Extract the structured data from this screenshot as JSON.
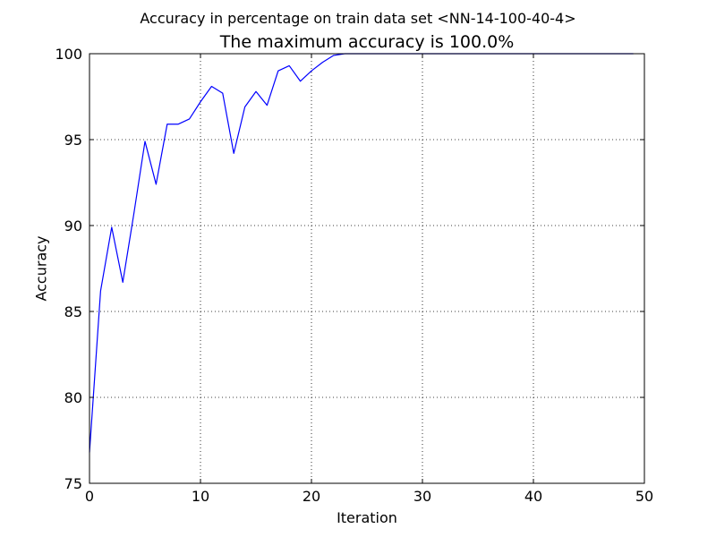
{
  "chart_data": {
    "type": "line",
    "suptitle": "Accuracy in percentage on train data set <NN-14-100-40-4>",
    "title": "The maximum accuracy is 100.0%",
    "xlabel": "Iteration",
    "ylabel": "Accuracy",
    "xlim": [
      0,
      50
    ],
    "ylim": [
      75,
      100
    ],
    "xticks": [
      0,
      10,
      20,
      30,
      40,
      50
    ],
    "yticks": [
      75,
      80,
      85,
      90,
      95,
      100
    ],
    "grid": true,
    "line_color": "#0000ff",
    "series": [
      {
        "x": [
          0,
          1,
          2,
          3,
          4,
          5,
          6,
          7,
          8,
          9,
          10,
          11,
          12,
          13,
          14,
          15,
          16,
          17,
          18,
          19,
          20,
          21,
          22,
          23,
          24,
          25,
          26,
          27,
          28,
          29,
          30,
          31,
          32,
          33,
          34,
          35,
          36,
          37,
          38,
          39,
          40,
          41,
          42,
          43,
          44,
          45,
          46,
          47,
          48,
          49
        ],
        "y": [
          76.8,
          86.2,
          89.9,
          86.7,
          90.7,
          94.9,
          92.4,
          95.9,
          95.9,
          96.2,
          97.2,
          98.1,
          97.7,
          94.2,
          96.9,
          97.8,
          97.0,
          99.0,
          99.3,
          98.4,
          99.0,
          99.5,
          99.9,
          100.0,
          100.0,
          100.0,
          100.0,
          100.0,
          100.0,
          100.0,
          100.0,
          100.0,
          100.0,
          100.0,
          100.0,
          100.0,
          100.0,
          100.0,
          100.0,
          100.0,
          100.0,
          100.0,
          100.0,
          100.0,
          100.0,
          100.0,
          100.0,
          100.0,
          100.0,
          100.0
        ]
      }
    ]
  }
}
